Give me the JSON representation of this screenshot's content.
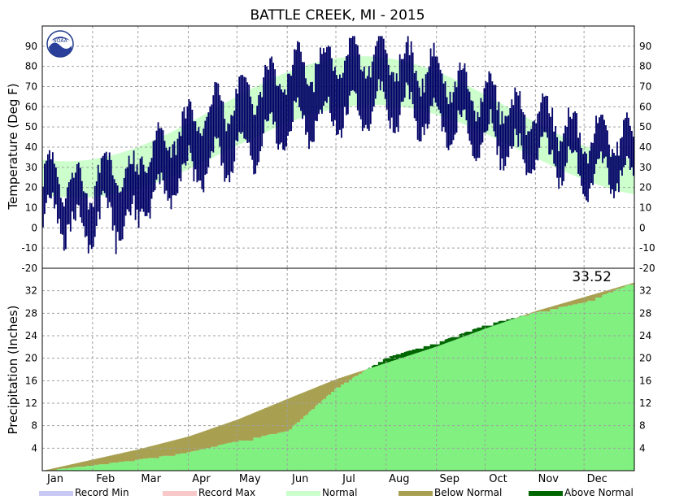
{
  "chart_data": {
    "title": "BATTLE CREEK, MI - 2015",
    "months": [
      "Jan",
      "Feb",
      "Mar",
      "Apr",
      "May",
      "Jun",
      "Jul",
      "Aug",
      "Sep",
      "Oct",
      "Nov",
      "Dec"
    ],
    "logo_text": "NOAA",
    "colors": {
      "record_min": "#c8c8f5",
      "record_max": "#f8c8c8",
      "normal_band": "#ccffcc",
      "observed": "#000066",
      "normal_precip": "#80f080",
      "below_normal": "#a8a050",
      "above_normal": "#006600"
    },
    "temperature": {
      "type": "bar",
      "ylabel": "Temperature (Deg F)",
      "ylim": [
        -20,
        100
      ],
      "yticks": [
        -20,
        -10,
        0,
        10,
        20,
        30,
        40,
        50,
        60,
        70,
        80,
        90
      ],
      "normal_high_approx": [
        {
          "month": "Jan",
          "value": 31
        },
        {
          "month": "Apr",
          "value": 58
        },
        {
          "month": "Jul",
          "value": 83
        },
        {
          "month": "Oct",
          "value": 62
        },
        {
          "month": "Dec",
          "value": 34
        }
      ],
      "normal_low_approx": [
        {
          "month": "Jan",
          "value": 16
        },
        {
          "month": "Apr",
          "value": 35
        },
        {
          "month": "Jul",
          "value": 61
        },
        {
          "month": "Oct",
          "value": 41
        },
        {
          "month": "Dec",
          "value": 19
        }
      ],
      "observed_highlights": {
        "max_high": 92,
        "max_high_month": "Aug",
        "min_low": -13,
        "min_low_month": "Feb"
      }
    },
    "precipitation": {
      "type": "area",
      "ylabel": "Precipitation (Inches)",
      "ylim": [
        0,
        36
      ],
      "yticks": [
        4,
        8,
        12,
        16,
        20,
        24,
        28,
        32
      ],
      "total_label": "33.52",
      "normal_cumulative_month_start": [
        0,
        2.0,
        3.8,
        6.1,
        9.1,
        12.8,
        16.3,
        19.2,
        22.1,
        25.3,
        28.4,
        30.9
      ],
      "normal_cumulative_year_end": 33.5,
      "observed_cumulative_month_start": [
        0,
        1.0,
        2.0,
        3.3,
        5.3,
        7.1,
        14.8,
        20.2,
        22.8,
        26.0,
        28.2,
        30.0
      ],
      "observed_year_end": 33.52
    },
    "legend": [
      {
        "label": "Record Min",
        "color_key": "record_min"
      },
      {
        "label": "Record Max",
        "color_key": "record_max"
      },
      {
        "label": "Normal",
        "color_key": "normal_band"
      },
      {
        "label": "Below Normal",
        "color_key": "below_normal"
      },
      {
        "label": "Above Normal",
        "color_key": "above_normal"
      }
    ]
  }
}
